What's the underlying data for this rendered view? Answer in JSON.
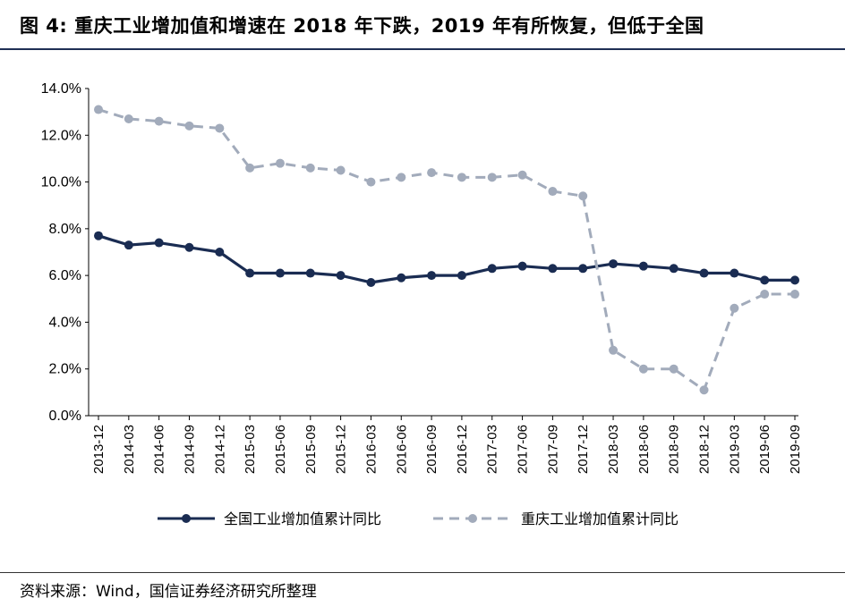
{
  "figure": {
    "title": "图 4:  重庆工业增加值和增速在 2018 年下跌，2019 年有所恢复，但低于全国",
    "source": "资料来源：Wind，国信证券经济研究所整理"
  },
  "chart_data": {
    "type": "line",
    "title": "",
    "xlabel": "",
    "ylabel": "",
    "categories": [
      "2013-12",
      "2014-03",
      "2014-06",
      "2014-09",
      "2014-12",
      "2015-03",
      "2015-06",
      "2015-09",
      "2015-12",
      "2016-03",
      "2016-06",
      "2016-09",
      "2016-12",
      "2017-03",
      "2017-06",
      "2017-09",
      "2017-12",
      "2018-03",
      "2018-06",
      "2018-09",
      "2018-12",
      "2019-03",
      "2019-06",
      "2019-09"
    ],
    "y_ticks": [
      "0.0%",
      "2.0%",
      "4.0%",
      "6.0%",
      "8.0%",
      "10.0%",
      "12.0%",
      "14.0%"
    ],
    "ylim": [
      0,
      14
    ],
    "grid": false,
    "legend_position": "bottom",
    "series": [
      {
        "name": "全国工业增加值累计同比",
        "color": "#1a2c52",
        "style": "solid",
        "values": [
          7.7,
          7.3,
          7.4,
          7.2,
          7.0,
          6.1,
          6.1,
          6.1,
          6.0,
          5.7,
          5.9,
          6.0,
          6.0,
          6.3,
          6.4,
          6.3,
          6.3,
          6.5,
          6.4,
          6.3,
          6.1,
          6.1,
          5.8,
          5.8
        ]
      },
      {
        "name": "重庆工业增加值累计同比",
        "color": "#a2abbb",
        "style": "dashed",
        "values": [
          13.1,
          12.7,
          12.6,
          12.4,
          12.3,
          10.6,
          10.8,
          10.6,
          10.5,
          10.0,
          10.2,
          10.4,
          10.2,
          10.2,
          10.3,
          9.6,
          9.4,
          2.8,
          2.0,
          2.0,
          1.1,
          4.6,
          5.2,
          5.2
        ]
      }
    ]
  }
}
